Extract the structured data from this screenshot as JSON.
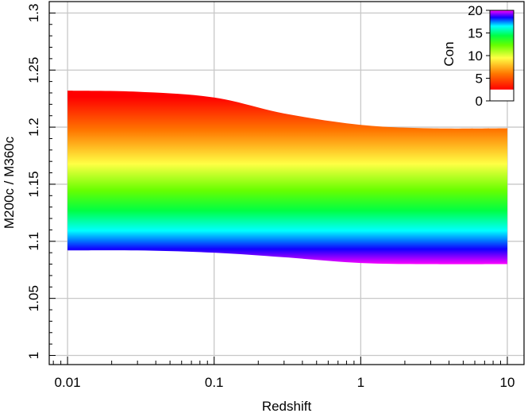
{
  "chart_data": {
    "type": "area",
    "xlabel": "Redshift",
    "ylabel": "M200c / M360c",
    "x_scale": "log",
    "xlim": [
      0.0075,
      13
    ],
    "ylim": [
      0.992,
      1.31
    ],
    "x_ticks": [
      {
        "value": 0.01,
        "label": "0.01"
      },
      {
        "value": 0.1,
        "label": "0.1"
      },
      {
        "value": 1,
        "label": "1"
      },
      {
        "value": 10,
        "label": "10"
      }
    ],
    "y_ticks": [
      {
        "value": 1.0,
        "label": "1"
      },
      {
        "value": 1.05,
        "label": "1.05"
      },
      {
        "value": 1.1,
        "label": "1.1"
      },
      {
        "value": 1.15,
        "label": "1.15"
      },
      {
        "value": 1.2,
        "label": "1.2"
      },
      {
        "value": 1.25,
        "label": "1.25"
      },
      {
        "value": 1.3,
        "label": "1.3"
      }
    ],
    "grid": true,
    "band": {
      "x": [
        0.01,
        0.03,
        0.1,
        0.3,
        1,
        3,
        10
      ],
      "upper": [
        1.232,
        1.231,
        1.226,
        1.212,
        1.202,
        1.199,
        1.199
      ],
      "lower": [
        1.092,
        1.092,
        1.09,
        1.086,
        1.081,
        1.08,
        1.08
      ],
      "color_levels": [
        {
          "frac": 0.0,
          "color": "#ff0000"
        },
        {
          "frac": 0.2,
          "color": "#ff7700"
        },
        {
          "frac": 0.4,
          "color": "#ffff44"
        },
        {
          "frac": 0.56,
          "color": "#66ff00"
        },
        {
          "frac": 0.68,
          "color": "#00ff44"
        },
        {
          "frac": 0.8,
          "color": "#00ffff"
        },
        {
          "frac": 0.86,
          "color": "#0077ff"
        },
        {
          "frac": 0.91,
          "color": "#1100ff"
        },
        {
          "frac": 0.95,
          "color": "#7700ff"
        },
        {
          "frac": 1.0,
          "color": "#ff00ff"
        }
      ]
    },
    "colorbar": {
      "label": "Con",
      "range": [
        0,
        20
      ],
      "fill_start": 2.5,
      "ticks": [
        {
          "value": 0,
          "label": "0"
        },
        {
          "value": 5,
          "label": "5"
        },
        {
          "value": 10,
          "label": "10"
        },
        {
          "value": 15,
          "label": "15"
        },
        {
          "value": 20,
          "label": "20"
        }
      ],
      "legend_position": "top-right"
    }
  }
}
